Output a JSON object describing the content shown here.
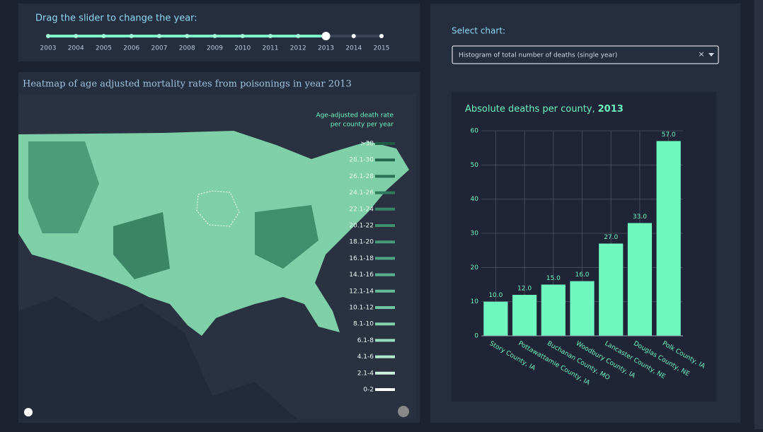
{
  "slider": {
    "label": "Drag the slider to change the year:",
    "years": [
      "2003",
      "2004",
      "2005",
      "2006",
      "2007",
      "2008",
      "2009",
      "2010",
      "2011",
      "2012",
      "2013",
      "2014",
      "2015"
    ],
    "selected": "2013"
  },
  "map": {
    "title": "Heatmap of age adjusted mortality rates from poisonings in year 2013",
    "legend_title": [
      "Age-adjusted death rate",
      "per county per year"
    ],
    "legend_items": [
      ">30",
      "28.1-30",
      "26.1-28",
      "24.1-26",
      "22.1-24",
      "20.1-22",
      "18.1-20",
      "16.1-18",
      "14.1-16",
      "12.1-14",
      "10.1-12",
      "8.1-10",
      "6.1-8",
      "4.1-6",
      "2.1-4",
      "0-2"
    ],
    "legend_colors": [
      "#1f5c45",
      "#24664d",
      "#2a7055",
      "#317a5e",
      "#388567",
      "#3f9070",
      "#479b79",
      "#50a683",
      "#5ab18d",
      "#65bc97",
      "#72c7a2",
      "#83d2ae",
      "#98ddbc",
      "#b0e8cb",
      "#cdf2de",
      "#ffffff"
    ]
  },
  "dropdown": {
    "label": "Select chart:",
    "value": "Histogram of total number of deaths (single year)"
  },
  "chart_data": {
    "type": "bar",
    "title": [
      "Absolute deaths per county,",
      "2013"
    ],
    "categories": [
      "Story County, IA",
      "Pottawattamie County, IA",
      "Buchanan County, MO",
      "Woodbury County, IA",
      "Lancaster County, NE",
      "Douglas County, NE",
      "Polk County, IA"
    ],
    "values": [
      10,
      12,
      15,
      16,
      27,
      33,
      57
    ],
    "value_labels": [
      "10.0",
      "12.0",
      "15.0",
      "16.0",
      "27.0",
      "33.0",
      "57.0"
    ],
    "color": "#6ff7bf",
    "ylim": [
      0,
      60
    ],
    "yticks": [
      0,
      10,
      20,
      30,
      40,
      50,
      60
    ],
    "grid": true
  }
}
